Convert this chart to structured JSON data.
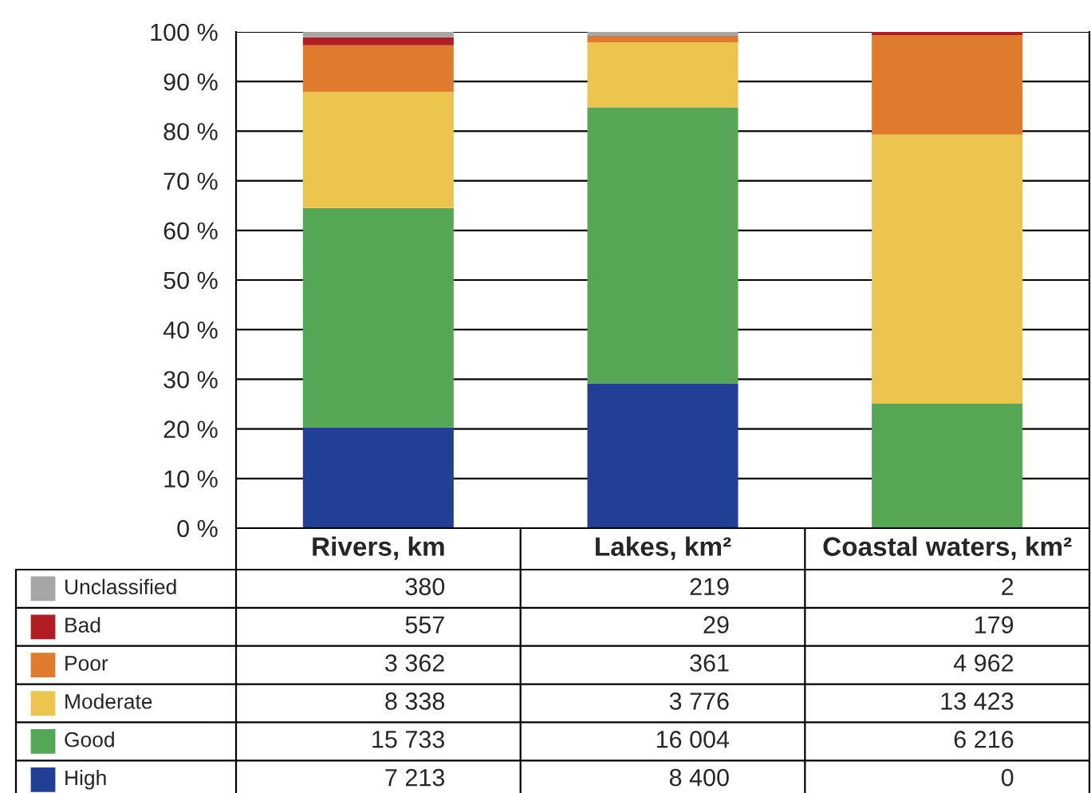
{
  "chart_data": {
    "type": "bar",
    "stacked": true,
    "categories": [
      "Rivers, km",
      "Lakes, km²",
      "Coastal waters, km²"
    ],
    "series": [
      {
        "name": "High",
        "color": "#213f94",
        "values": [
          20.3,
          29.2,
          0.0
        ]
      },
      {
        "name": "Good",
        "color": "#55a655",
        "values": [
          44.2,
          55.6,
          25.1
        ]
      },
      {
        "name": "Moderate",
        "color": "#ebc54d",
        "values": [
          23.4,
          13.1,
          54.2
        ]
      },
      {
        "name": "Poor",
        "color": "#e07b2d",
        "values": [
          9.4,
          1.2,
          20.0
        ]
      },
      {
        "name": "Bad",
        "color": "#b01e23",
        "values": [
          1.6,
          0.1,
          0.7
        ]
      },
      {
        "name": "Unclassified",
        "color": "#a6a6a6",
        "values": [
          1.1,
          0.8,
          0.0
        ]
      }
    ],
    "annotations": [
      "380",
      "219",
      "2",
      "557",
      "29",
      "179",
      "3 362",
      "361",
      "4 962",
      "8 338",
      "3 776",
      "13 423",
      "15 733",
      "16 004",
      "6 216",
      "7 213",
      "8 400",
      "0"
    ],
    "ylim": [
      0,
      100
    ],
    "yticks": [
      {
        "value": 0,
        "label": "0 %"
      },
      {
        "value": 10,
        "label": "10 %"
      },
      {
        "value": 20,
        "label": "20 %"
      },
      {
        "value": 30,
        "label": "30 %"
      },
      {
        "value": 40,
        "label": "40 %"
      },
      {
        "value": 50,
        "label": "50 %"
      },
      {
        "value": 60,
        "label": "60 %"
      },
      {
        "value": 70,
        "label": "70 %"
      },
      {
        "value": 80,
        "label": "80 %"
      },
      {
        "value": 90,
        "label": "90 %"
      },
      {
        "value": 100,
        "label": "100 %"
      }
    ],
    "grid": "y",
    "legend": "bottom"
  }
}
